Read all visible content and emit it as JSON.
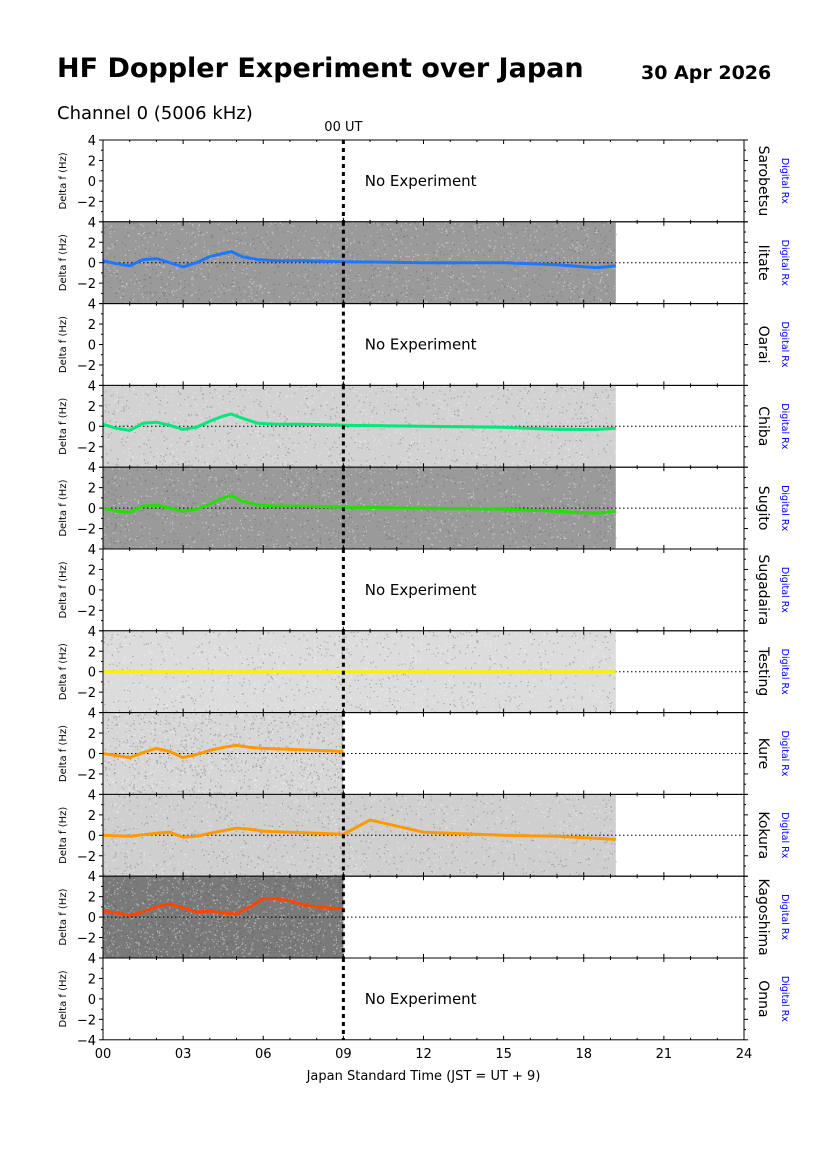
{
  "header": {
    "title": "HF Doppler Experiment over Japan",
    "date": "30 Apr 2026",
    "channel": "Channel 0 (5006 kHz)"
  },
  "chart_data": {
    "type": "line",
    "title": "HF Doppler Experiment over Japan",
    "subtitle": "Channel 0 (5006 kHz)",
    "xlabel": "Japan Standard Time (JST = UT + 9)",
    "ylabel": "Delta f (Hz)",
    "xlim": [
      0,
      24
    ],
    "ylim": [
      -4,
      4
    ],
    "x_ticks": [
      "00",
      "03",
      "06",
      "09",
      "12",
      "15",
      "18",
      "21",
      "24"
    ],
    "y_ticks": [
      "4",
      "2",
      "0",
      "−2",
      "−4"
    ],
    "ut_marker": {
      "x": 9,
      "label": "00 UT"
    },
    "receiver_label": "Digital Rx",
    "no_experiment_label": "No Experiment",
    "stations": [
      {
        "name": "Sarobetsu",
        "status": "no_experiment"
      },
      {
        "name": "Iitate",
        "status": "data",
        "color": "#1f77ff",
        "background": "#9a9a9a",
        "data_end": 19.2,
        "x": [
          0,
          0.5,
          1,
          1.5,
          2,
          2.5,
          3,
          3.5,
          4,
          4.5,
          4.8,
          5.2,
          5.8,
          6.5,
          7.5,
          9,
          12,
          15,
          17,
          18.5,
          19.2
        ],
        "y": [
          0.2,
          -0.1,
          -0.3,
          0.3,
          0.4,
          0.0,
          -0.4,
          0.0,
          0.6,
          0.9,
          1.1,
          0.6,
          0.3,
          0.2,
          0.2,
          0.1,
          0.0,
          0.0,
          -0.2,
          -0.5,
          -0.3
        ]
      },
      {
        "name": "Oarai",
        "status": "no_experiment"
      },
      {
        "name": "Chiba",
        "status": "data",
        "color": "#00e87a",
        "background": "#d2d2d2",
        "data_end": 19.2,
        "x": [
          0,
          0.5,
          1,
          1.5,
          2,
          2.5,
          3,
          3.5,
          4,
          4.5,
          4.8,
          5.2,
          5.8,
          6.5,
          7.5,
          9,
          12,
          15,
          17,
          18.5,
          19.2
        ],
        "y": [
          0.2,
          -0.2,
          -0.4,
          0.3,
          0.4,
          0.1,
          -0.3,
          -0.1,
          0.5,
          1.0,
          1.2,
          0.8,
          0.3,
          0.2,
          0.2,
          0.1,
          0.0,
          -0.1,
          -0.3,
          -0.3,
          -0.2
        ]
      },
      {
        "name": "Sugito",
        "status": "data",
        "color": "#22e000",
        "background": "#9a9a9a",
        "data_end": 19.2,
        "x": [
          0,
          0.5,
          1,
          1.5,
          2,
          2.5,
          3,
          3.5,
          4,
          4.5,
          4.8,
          5.2,
          5.8,
          6.5,
          7.5,
          9,
          12,
          15,
          17,
          18.5,
          19.2
        ],
        "y": [
          0.0,
          -0.3,
          -0.4,
          0.2,
          0.3,
          0.0,
          -0.3,
          -0.1,
          0.4,
          1.0,
          1.2,
          0.7,
          0.3,
          0.2,
          0.2,
          0.1,
          0.0,
          -0.1,
          -0.3,
          -0.5,
          -0.3
        ]
      },
      {
        "name": "Sugadaira",
        "status": "no_experiment"
      },
      {
        "name": "Testing",
        "status": "data",
        "color": "#ffee00",
        "background": "#dcdcdc",
        "data_end": 19.2,
        "x": [
          0,
          6,
          12,
          19.2
        ],
        "y": [
          0.0,
          0.0,
          0.0,
          0.0
        ]
      },
      {
        "name": "Kure",
        "status": "data",
        "color": "#ff9900",
        "background": "#d6d6d6",
        "data_end": 9,
        "x": [
          0,
          0.5,
          1,
          1.5,
          2,
          2.5,
          3,
          3.5,
          4,
          4.5,
          5,
          5.5,
          6,
          7,
          8,
          9
        ],
        "y": [
          0.0,
          -0.2,
          -0.4,
          0.1,
          0.5,
          0.2,
          -0.4,
          -0.1,
          0.3,
          0.6,
          0.8,
          0.6,
          0.5,
          0.4,
          0.3,
          0.2
        ]
      },
      {
        "name": "Kokura",
        "status": "data",
        "color": "#ff9900",
        "background": "#cfcfcf",
        "data_end": 19.2,
        "x": [
          0,
          1,
          2,
          2.5,
          3,
          3.5,
          4,
          5,
          5.5,
          6,
          7,
          9,
          10,
          12,
          15,
          17,
          18.5,
          19.2
        ],
        "y": [
          0.0,
          -0.1,
          0.2,
          0.3,
          -0.2,
          -0.1,
          0.2,
          0.7,
          0.6,
          0.4,
          0.3,
          0.1,
          1.5,
          0.3,
          0.0,
          -0.1,
          -0.3,
          -0.4
        ]
      },
      {
        "name": "Kagoshima",
        "status": "data",
        "color": "#ff4500",
        "background": "#7a7a7a",
        "data_end": 9,
        "x": [
          0,
          0.5,
          1,
          1.5,
          2,
          2.5,
          3,
          3.5,
          4,
          4.5,
          5,
          5.5,
          6,
          6.5,
          7,
          7.5,
          8,
          9
        ],
        "y": [
          0.6,
          0.4,
          0.2,
          0.5,
          1.0,
          1.3,
          0.9,
          0.5,
          0.6,
          0.4,
          0.3,
          1.0,
          1.8,
          1.8,
          1.6,
          1.2,
          1.0,
          0.8
        ]
      },
      {
        "name": "Onna",
        "status": "no_experiment"
      }
    ]
  }
}
